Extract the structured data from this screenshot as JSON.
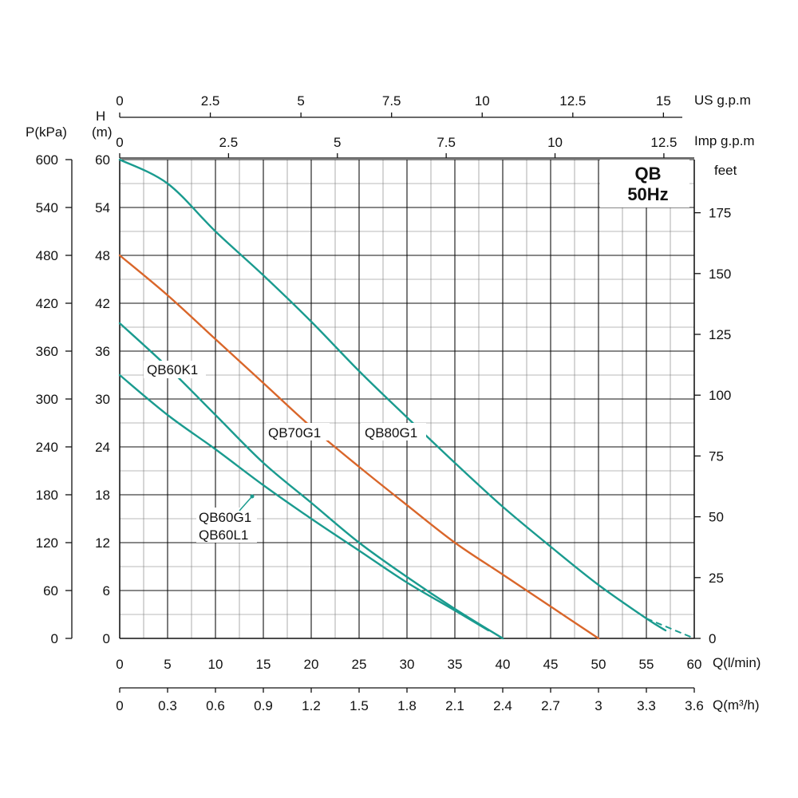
{
  "units": {
    "us_gpm": "US  g.p.m",
    "imp_gpm": "Imp  g.p.m",
    "h_top": "H",
    "h_bottom": "(m)",
    "p_kpa": "P(kPa)",
    "feet": "feet",
    "q_lmin": "Q(l/min)",
    "q_m3h": "Q(m³/h)"
  },
  "model": {
    "name": "QB",
    "freq": "50Hz"
  },
  "colors": {
    "teal": "#1a9b8f",
    "orange": "#d9662a",
    "grid": "#111111",
    "minor_grid": "#777777"
  },
  "chart_data": {
    "type": "line",
    "x_axis": {
      "label": "Q(l/min)",
      "range": [
        0,
        60
      ],
      "ticks": [
        "0",
        "5",
        "10",
        "15",
        "20",
        "25",
        "30",
        "35",
        "40",
        "45",
        "50",
        "55",
        "60"
      ]
    },
    "y_axis": {
      "label": "H (m)",
      "range": [
        0,
        60
      ],
      "ticks": [
        "0",
        "6",
        "12",
        "18",
        "24",
        "30",
        "36",
        "42",
        "48",
        "54",
        "60"
      ]
    },
    "secondary_axes": {
      "p_kpa": {
        "label": "P(kPa)",
        "ticks": [
          "0",
          "60",
          "120",
          "180",
          "240",
          "300",
          "360",
          "420",
          "480",
          "540",
          "600"
        ]
      },
      "feet": {
        "label": "feet",
        "ticks": [
          "0",
          "25",
          "50",
          "75",
          "100",
          "125",
          "150",
          "175"
        ]
      },
      "q_m3h": {
        "label": "Q(m³/h)",
        "ticks": [
          "0",
          "0.3",
          "0.6",
          "0.9",
          "1.2",
          "1.5",
          "1.8",
          "2.1",
          "2.4",
          "2.7",
          "3",
          "3.3",
          "3.6"
        ]
      },
      "us_gpm": {
        "label": "US  g.p.m",
        "ticks": [
          "0",
          "2.5",
          "5",
          "7.5",
          "10",
          "12.5",
          "15"
        ]
      },
      "imp_gpm": {
        "label": "Imp  g.p.m",
        "ticks": [
          "0",
          "2.5",
          "5",
          "7.5",
          "10",
          "12.5"
        ]
      }
    },
    "series": [
      {
        "name": "QB80G1",
        "color": "teal",
        "points": [
          [
            0,
            60
          ],
          [
            5,
            57
          ],
          [
            10,
            51
          ],
          [
            15,
            45.5
          ],
          [
            20,
            39.7
          ],
          [
            25,
            33.5
          ],
          [
            30,
            27.7
          ],
          [
            35,
            22
          ],
          [
            40,
            16.5
          ],
          [
            45,
            11.5
          ],
          [
            50,
            6.7
          ],
          [
            55,
            2.5
          ],
          [
            57,
            1
          ]
        ],
        "dashed_tail": [
          [
            55,
            2.5
          ],
          [
            60,
            0
          ]
        ]
      },
      {
        "name": "QB70G1",
        "color": "orange",
        "points": [
          [
            0,
            48
          ],
          [
            5,
            43
          ],
          [
            10,
            37.5
          ],
          [
            15,
            32
          ],
          [
            20,
            26.5
          ],
          [
            25,
            21.5
          ],
          [
            30,
            16.7
          ],
          [
            35,
            12
          ],
          [
            40,
            8
          ],
          [
            45,
            4
          ],
          [
            50,
            0
          ]
        ]
      },
      {
        "name": "QB60K1",
        "color": "teal",
        "points": [
          [
            0,
            39.5
          ],
          [
            5,
            34
          ],
          [
            10,
            28
          ],
          [
            15,
            22
          ],
          [
            20,
            17
          ],
          [
            25,
            12
          ],
          [
            30,
            7.7
          ],
          [
            35,
            3.7
          ],
          [
            40,
            0
          ]
        ]
      },
      {
        "name": "QB60G1 / QB60L1",
        "color": "teal",
        "points": [
          [
            0,
            33
          ],
          [
            5,
            28
          ],
          [
            10,
            23.7
          ],
          [
            15,
            19.2
          ],
          [
            20,
            15
          ],
          [
            25,
            11
          ],
          [
            30,
            7
          ],
          [
            35,
            3.5
          ],
          [
            38.5,
            1
          ]
        ]
      }
    ],
    "labels": [
      "QB60K1",
      "QB70G1",
      "QB80G1",
      "QB60G1",
      "QB60L1"
    ]
  }
}
